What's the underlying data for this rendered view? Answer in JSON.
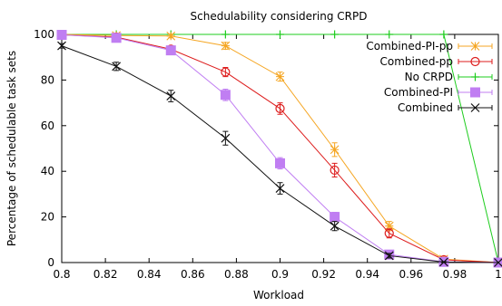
{
  "chart_data": {
    "type": "line",
    "title": "Schedulability considering CRPD",
    "xlabel": "Workload",
    "ylabel": "Percentage of schedulable task sets",
    "xlim": [
      0.8,
      1.0
    ],
    "ylim": [
      0,
      100
    ],
    "x_ticks": [
      "0.8",
      "0.82",
      "0.84",
      "0.86",
      "0.88",
      "0.9",
      "0.92",
      "0.94",
      "0.96",
      "0.98",
      "1"
    ],
    "y_ticks": [
      "0",
      "20",
      "40",
      "60",
      "80",
      "100"
    ],
    "grid": false,
    "legend_position": "top-right",
    "x": [
      0.8,
      0.825,
      0.85,
      0.875,
      0.9,
      0.925,
      0.95,
      0.975,
      1.0
    ],
    "series": [
      {
        "name": "Combined-PI-pp",
        "color": "#f5a623",
        "marker": "asterisk",
        "values": [
          100,
          99.5,
          99.3,
          95,
          81.5,
          49.5,
          16,
          1.5,
          0
        ],
        "errors": [
          0,
          0.5,
          0.8,
          1.5,
          2.0,
          3.0,
          2.0,
          0.8,
          0
        ]
      },
      {
        "name": "Combined-pp",
        "color": "#dd1c1c",
        "marker": "circle",
        "values": [
          99.8,
          98.8,
          93.5,
          83.5,
          67.5,
          40.5,
          12.8,
          1.2,
          0
        ],
        "errors": [
          0,
          0.6,
          1.2,
          2.0,
          2.5,
          3.0,
          2.0,
          0.8,
          0
        ]
      },
      {
        "name": "No CRPD",
        "color": "#1dcc1d",
        "marker": "plus",
        "values": [
          100,
          100,
          100,
          100,
          100,
          100,
          100,
          100,
          0
        ],
        "errors": [
          0,
          0,
          0,
          0,
          0,
          0,
          0,
          0,
          0
        ]
      },
      {
        "name": "Combined-PI",
        "color": "#c07ef2",
        "marker": "square",
        "values": [
          99.8,
          98.5,
          93,
          73.5,
          43.5,
          20,
          3.5,
          0.3,
          0
        ],
        "errors": [
          0,
          0.6,
          1.2,
          2.5,
          2.5,
          2.0,
          1.0,
          0.3,
          0
        ]
      },
      {
        "name": "Combined",
        "color": "#111111",
        "marker": "x",
        "values": [
          95,
          86,
          73,
          54.5,
          32.5,
          16,
          3,
          0.2,
          0
        ],
        "errors": [
          1.0,
          1.8,
          2.5,
          3.0,
          2.5,
          2.0,
          1.0,
          0.2,
          0
        ]
      }
    ]
  }
}
